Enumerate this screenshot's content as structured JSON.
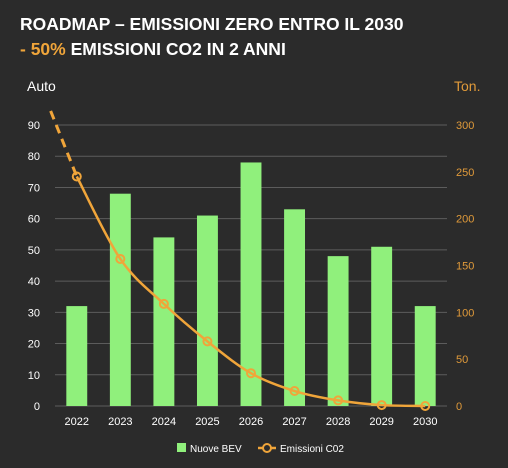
{
  "title": {
    "line1": "ROADMAP – EMISSIONI ZERO ENTRO IL 2030",
    "line2_accent": "- 50%",
    "line2_rest": " EMISSIONI CO2 IN 2 ANNI"
  },
  "colors": {
    "background": "#2b2b2b",
    "bar": "#90f07c",
    "line": "#f0a53a",
    "title_accent": "#f0a53a",
    "right_axis": "#e09a3a",
    "grid": "#5c5c5c"
  },
  "chart_data": {
    "type": "bar",
    "categories": [
      "2022",
      "2023",
      "2024",
      "2025",
      "2026",
      "2027",
      "2028",
      "2029",
      "2030"
    ],
    "series": [
      {
        "name": "Nuove BEV",
        "type": "bar",
        "axis": "left",
        "values": [
          32,
          68,
          54,
          61,
          78,
          63,
          48,
          51,
          32
        ]
      },
      {
        "name": "Emissioni C02",
        "type": "line",
        "axis": "right",
        "values": [
          245,
          157,
          109,
          69,
          35,
          16,
          6,
          1,
          0
        ],
        "dashed_lead_in_from": 315
      }
    ],
    "ylabel": "Auto",
    "y2label": "Ton.",
    "ylim": [
      0,
      90
    ],
    "y2lim": [
      0,
      300
    ],
    "yticks": [
      0,
      10,
      20,
      30,
      40,
      50,
      60,
      70,
      80,
      90
    ],
    "y2ticks": [
      0,
      50,
      100,
      150,
      200,
      250,
      300
    ],
    "grid": true,
    "legend_position": "bottom"
  }
}
